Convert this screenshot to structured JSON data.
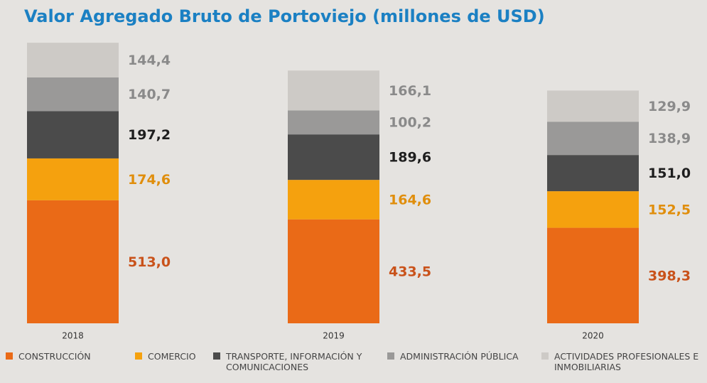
{
  "chart_data": {
    "type": "stacked_bar",
    "title": "Valor Agregado Bruto de Portoviejo (millones de USD)",
    "categories": [
      "2018",
      "2019",
      "2020"
    ],
    "series": [
      {
        "name": "CONSTRUCCIÓN",
        "color": "#ea6a17",
        "label_color": "#c9521a",
        "values": [
          513.0,
          433.5,
          398.3
        ],
        "value_labels": [
          "513,0",
          "433,5",
          "398,3"
        ]
      },
      {
        "name": "COMERCIO",
        "color": "#f5a10e",
        "label_color": "#e08e0c",
        "values": [
          174.6,
          164.6,
          152.5
        ],
        "value_labels": [
          "174,6",
          "164,6",
          "152,5"
        ]
      },
      {
        "name": "TRANSPORTE, INFORMACIÓN Y COMUNICACIONES",
        "color": "#4b4b4b",
        "label_color": "#1e1e1e",
        "values": [
          197.2,
          189.6,
          151.0
        ],
        "value_labels": [
          "197,2",
          "189,6",
          "151,0"
        ]
      },
      {
        "name": "ADMINISTRACIÓN PÚBLICA",
        "color": "#9a9998",
        "label_color": "#8a8a8a",
        "values": [
          140.7,
          100.2,
          138.9
        ],
        "value_labels": [
          "140,7",
          "100,2",
          "138,9"
        ]
      },
      {
        "name": "ACTIVIDADES PROFESIONALES E INMOBILIARIAS",
        "color": "#cdcac6",
        "label_color": "#8a8a8a",
        "values": [
          144.4,
          166.1,
          129.9
        ],
        "value_labels": [
          "144,4",
          "166,1",
          "129,9"
        ]
      }
    ]
  }
}
